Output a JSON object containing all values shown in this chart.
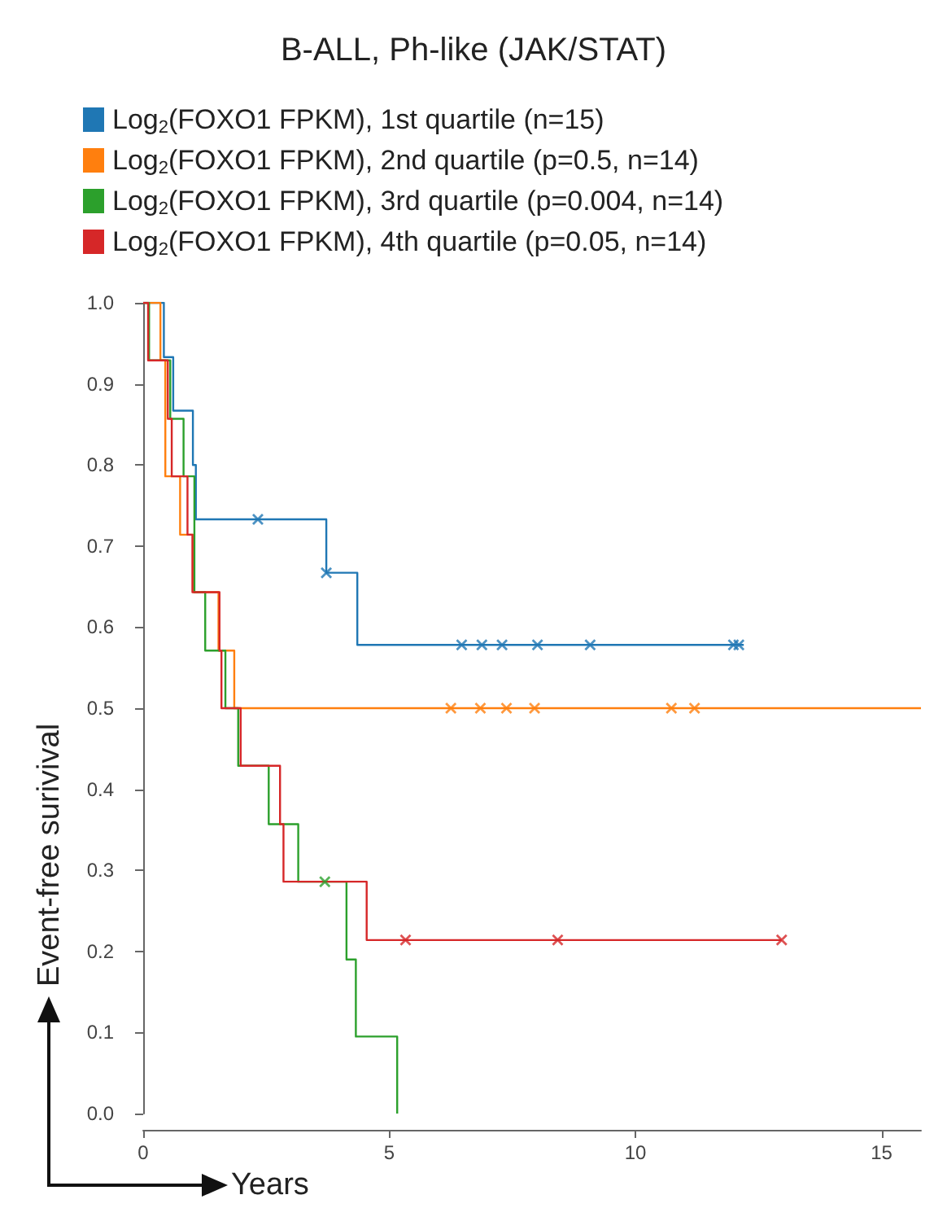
{
  "chart_data": {
    "type": "step",
    "title": "B-ALL, Ph-like (JAK/STAT)",
    "xlabel": "Years",
    "ylabel": "Event-free surivival",
    "xlim": [
      0,
      15.8
    ],
    "xticks": [
      0,
      5,
      10,
      15
    ],
    "ylim": [
      0,
      1
    ],
    "yticks": [
      {
        "value": 0,
        "label": "0.0"
      },
      {
        "value": 0.1,
        "label": "0.1"
      },
      {
        "value": 0.2,
        "label": "0.2"
      },
      {
        "value": 0.3,
        "label": "0.3"
      },
      {
        "value": 0.4,
        "label": "0.4"
      },
      {
        "value": 0.5,
        "label": "0.5"
      },
      {
        "value": 0.6,
        "label": "0.6"
      },
      {
        "value": 0.7,
        "label": "0.7"
      },
      {
        "value": 0.8,
        "label": "0.8"
      },
      {
        "value": 0.9,
        "label": "0.9"
      },
      {
        "value": 1,
        "label": "1.0"
      }
    ],
    "grid": false,
    "legend": "top left",
    "line_style": "solid",
    "marker": "none",
    "series": [
      {
        "name": "Log$_{2}$(FOXO1 FPKM), 1st quartile (n=15)",
        "color": "#1f77b4",
        "x": [
          0,
          0.42,
          0.61,
          1.01,
          1.07,
          3.72,
          4.35,
          12.2
        ],
        "values": [
          1,
          0.933,
          0.867,
          0.8,
          0.733,
          0.667,
          0.578,
          0.578
        ]
      },
      {
        "name": "Log$_{2}$(FOXO1 FPKM), 2nd quartile (p=0.5, n=14)",
        "color": "#ff7f0e",
        "x": [
          0,
          0.35,
          0.45,
          0.75,
          1.03,
          1.53,
          1.85,
          15.8
        ],
        "values": [
          1,
          0.929,
          0.786,
          0.714,
          0.643,
          0.571,
          0.5,
          0.5
        ]
      },
      {
        "name": "Log$_{2}$(FOXO1 FPKM), 3rd quartile (p=0.004, n=14)",
        "color": "#2ca02c",
        "x": [
          0,
          0.12,
          0.55,
          0.82,
          1.04,
          1.26,
          1.67,
          1.93,
          2.55,
          3.15,
          4.13,
          4.32,
          5.16
        ],
        "values": [
          1,
          0.929,
          0.857,
          0.786,
          0.643,
          0.571,
          0.5,
          0.429,
          0.357,
          0.286,
          0.19,
          0.095,
          0
        ]
      },
      {
        "name": "Log$_{2}$(FOXO1 FPKM), 4th quartile (p=0.05, n=14)",
        "color": "#d62728",
        "x": [
          0,
          0.1,
          0.5,
          0.58,
          0.9,
          1.0,
          1.55,
          1.59,
          1.98,
          2.78,
          2.85,
          4.54,
          12.97
        ],
        "values": [
          1,
          0.929,
          0.857,
          0.786,
          0.714,
          0.643,
          0.571,
          0.5,
          0.429,
          0.357,
          0.286,
          0.214,
          0.214
        ]
      },
      {
        "type": "scatter",
        "marker": "cross",
        "color": "#1f77b4",
        "x": [
          2.33,
          3.72,
          6.47,
          6.88,
          7.29,
          8.01,
          9.08,
          11.99,
          12.1
        ],
        "values": [
          0.733,
          0.667,
          0.578,
          0.578,
          0.578,
          0.578,
          0.578,
          0.578,
          0.578
        ]
      },
      {
        "type": "scatter",
        "marker": "cross",
        "color": "#ff7f0e",
        "x": [
          6.25,
          6.85,
          7.38,
          7.95,
          10.73,
          11.2
        ],
        "values": [
          0.5,
          0.5,
          0.5,
          0.5,
          0.5,
          0.5
        ]
      },
      {
        "type": "scatter",
        "marker": "cross",
        "color": "#2ca02c",
        "x": [
          3.69
        ],
        "values": [
          0.286
        ]
      },
      {
        "type": "scatter",
        "marker": "cross",
        "color": "#d62728",
        "x": [
          5.33,
          8.42,
          12.97
        ],
        "values": [
          0.214,
          0.214,
          0.214
        ]
      }
    ]
  }
}
